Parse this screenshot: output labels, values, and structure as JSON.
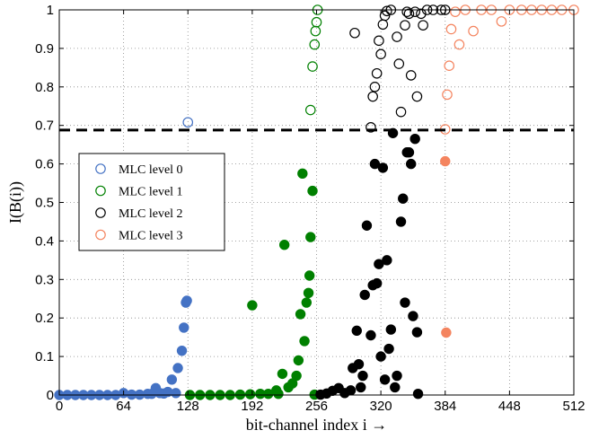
{
  "chart_data": {
    "type": "scatter",
    "title": "",
    "xlabel": "bit-channel index i →",
    "ylabel": "I(B(i))",
    "xlim": [
      0,
      512
    ],
    "ylim": [
      0,
      1
    ],
    "x_ticks": [
      0,
      64,
      128,
      192,
      256,
      320,
      384,
      448,
      512
    ],
    "y_ticks": [
      0,
      0.1,
      0.2,
      0.3,
      0.4,
      0.5,
      0.6,
      0.7,
      0.8,
      0.9,
      1
    ],
    "x_tick_labels": [
      "0",
      "64",
      "128",
      "192",
      "256",
      "320",
      "384",
      "448",
      "512"
    ],
    "y_tick_labels": [
      "0",
      "0.1",
      "0.2",
      "0.3",
      "0.4",
      "0.5",
      "0.6",
      "0.7",
      "0.8",
      "0.9",
      "1"
    ],
    "grid": true,
    "legend_position": "left",
    "threshold": 0.688,
    "series": [
      {
        "name": "MLC level 0",
        "color": "#4472C4",
        "hollow": [
          [
            128,
            0.708
          ]
        ],
        "filled": [
          [
            0,
            0
          ],
          [
            8,
            0
          ],
          [
            16,
            0
          ],
          [
            24,
            0
          ],
          [
            32,
            0
          ],
          [
            40,
            0
          ],
          [
            48,
            0
          ],
          [
            56,
            0
          ],
          [
            64,
            0.005
          ],
          [
            72,
            0.001
          ],
          [
            80,
            0.001
          ],
          [
            88,
            0.003
          ],
          [
            92,
            0.003
          ],
          [
            96,
            0.018
          ],
          [
            100,
            0.005
          ],
          [
            104,
            0.004
          ],
          [
            108,
            0.008
          ],
          [
            112,
            0.04
          ],
          [
            116,
            0.005
          ],
          [
            118,
            0.07
          ],
          [
            122,
            0.115
          ],
          [
            124,
            0.175
          ],
          [
            126,
            0.24
          ],
          [
            127,
            0.245
          ]
        ]
      },
      {
        "name": "MLC level 1",
        "color": "#008000",
        "hollow": [
          [
            250,
            0.74
          ],
          [
            252,
            0.853
          ],
          [
            254,
            0.91
          ],
          [
            255,
            0.945
          ],
          [
            256,
            0.968
          ],
          [
            257,
            1.0
          ]
        ],
        "filled": [
          [
            130,
            0
          ],
          [
            140,
            0
          ],
          [
            150,
            0
          ],
          [
            160,
            0
          ],
          [
            170,
            0
          ],
          [
            180,
            0.001
          ],
          [
            190,
            0.002
          ],
          [
            192,
            0.233
          ],
          [
            200,
            0.003
          ],
          [
            208,
            0.003
          ],
          [
            216,
            0.012
          ],
          [
            218,
            0.003
          ],
          [
            222,
            0.055
          ],
          [
            224,
            0.39
          ],
          [
            228,
            0.02
          ],
          [
            232,
            0.03
          ],
          [
            236,
            0.05
          ],
          [
            238,
            0.09
          ],
          [
            240,
            0.21
          ],
          [
            242,
            0.575
          ],
          [
            244,
            0.14
          ],
          [
            246,
            0.24
          ],
          [
            248,
            0.265
          ],
          [
            249,
            0.31
          ],
          [
            250,
            0.41
          ],
          [
            252,
            0.53
          ],
          [
            254,
            0.001
          ]
        ]
      },
      {
        "name": "MLC level 2",
        "color": "#000000",
        "hollow": [
          [
            294,
            0.94
          ],
          [
            310,
            0.695
          ],
          [
            312,
            0.775
          ],
          [
            314,
            0.8
          ],
          [
            316,
            0.835
          ],
          [
            318,
            0.92
          ],
          [
            320,
            0.885
          ],
          [
            322,
            0.962
          ],
          [
            324,
            0.985
          ],
          [
            326,
            0.997
          ],
          [
            330,
            1.0
          ],
          [
            336,
            0.93
          ],
          [
            338,
            0.86
          ],
          [
            340,
            0.735
          ],
          [
            344,
            0.96
          ],
          [
            346,
            0.995
          ],
          [
            348,
            0.99
          ],
          [
            350,
            0.83
          ],
          [
            354,
            0.995
          ],
          [
            356,
            0.775
          ],
          [
            360,
            0.99
          ],
          [
            362,
            0.96
          ],
          [
            366,
            1.0
          ],
          [
            372,
            1.0
          ],
          [
            380,
            1.0
          ],
          [
            384,
            1.0
          ]
        ],
        "filled": [
          [
            260,
            0.001
          ],
          [
            266,
            0.004
          ],
          [
            272,
            0.011
          ],
          [
            278,
            0.018
          ],
          [
            284,
            0.005
          ],
          [
            290,
            0.012
          ],
          [
            292,
            0.07
          ],
          [
            296,
            0.167
          ],
          [
            298,
            0.08
          ],
          [
            300,
            0.02
          ],
          [
            302,
            0.05
          ],
          [
            304,
            0.26
          ],
          [
            306,
            0.44
          ],
          [
            310,
            0.155
          ],
          [
            312,
            0.285
          ],
          [
            314,
            0.6
          ],
          [
            316,
            0.29
          ],
          [
            318,
            0.34
          ],
          [
            320,
            0.1
          ],
          [
            322,
            0.59
          ],
          [
            324,
            0.04
          ],
          [
            326,
            0.35
          ],
          [
            328,
            0.12
          ],
          [
            330,
            0.17
          ],
          [
            332,
            0.68
          ],
          [
            334,
            0.02
          ],
          [
            336,
            0.05
          ],
          [
            340,
            0.45
          ],
          [
            342,
            0.51
          ],
          [
            344,
            0.24
          ],
          [
            346,
            0.63
          ],
          [
            348,
            0.63
          ],
          [
            350,
            0.6
          ],
          [
            352,
            0.205
          ],
          [
            354,
            0.665
          ],
          [
            356,
            0.163
          ],
          [
            357,
            0.003
          ]
        ]
      },
      {
        "name": "MLC level 3",
        "color": "#F4845F",
        "hollow": [
          [
            384,
            0.69
          ],
          [
            386,
            0.78
          ],
          [
            388,
            0.855
          ],
          [
            390,
            0.95
          ],
          [
            394,
            0.995
          ],
          [
            398,
            0.91
          ],
          [
            404,
            1.0
          ],
          [
            412,
            0.945
          ],
          [
            420,
            1.0
          ],
          [
            430,
            1.0
          ],
          [
            440,
            0.97
          ],
          [
            448,
            1.0
          ],
          [
            460,
            1.0
          ],
          [
            470,
            1.0
          ],
          [
            480,
            1.0
          ],
          [
            490,
            1.0
          ],
          [
            500,
            1.0
          ],
          [
            512,
            1.0
          ]
        ],
        "filled": [
          [
            384,
            0.607
          ],
          [
            385,
            0.162
          ]
        ]
      }
    ]
  }
}
